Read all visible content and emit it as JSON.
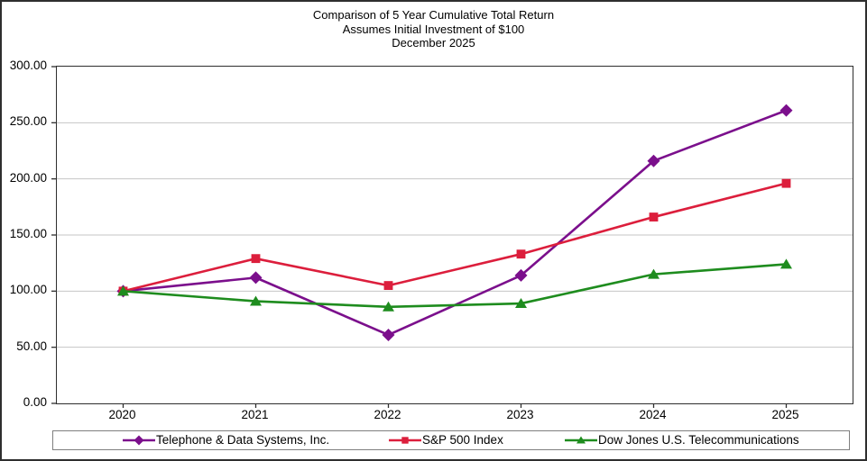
{
  "title": {
    "line1": "Comparison of 5 Year Cumulative Total Return",
    "line2": "Assumes Initial Investment of $100",
    "line3": "December 2025"
  },
  "chart_data": {
    "type": "line",
    "x": [
      "2020",
      "2021",
      "2022",
      "2023",
      "2024",
      "2025"
    ],
    "series": [
      {
        "name": "Telephone & Data Systems, Inc.",
        "color": "#7B0F8C",
        "marker": "diamond",
        "values": [
          100.0,
          112.0,
          61.0,
          114.0,
          216.0,
          261.0
        ]
      },
      {
        "name": "S&P 500 Index",
        "color": "#DC1E3C",
        "marker": "square",
        "values": [
          100.0,
          129.0,
          105.0,
          133.0,
          166.0,
          196.0
        ]
      },
      {
        "name": "Dow Jones U.S. Telecommunications",
        "color": "#1E8C1E",
        "marker": "triangle",
        "values": [
          100.0,
          91.0,
          86.0,
          89.0,
          115.0,
          124.0
        ]
      }
    ],
    "ylim": [
      0,
      300
    ],
    "y_ticks": [
      0,
      50,
      100,
      150,
      200,
      250,
      300
    ],
    "y_tick_labels": [
      "0.00",
      "50.00",
      "100.00",
      "150.00",
      "200.00",
      "250.00",
      "300.00"
    ],
    "grid": true,
    "grid_color": "#c6c6c6",
    "legend_position": "bottom"
  }
}
